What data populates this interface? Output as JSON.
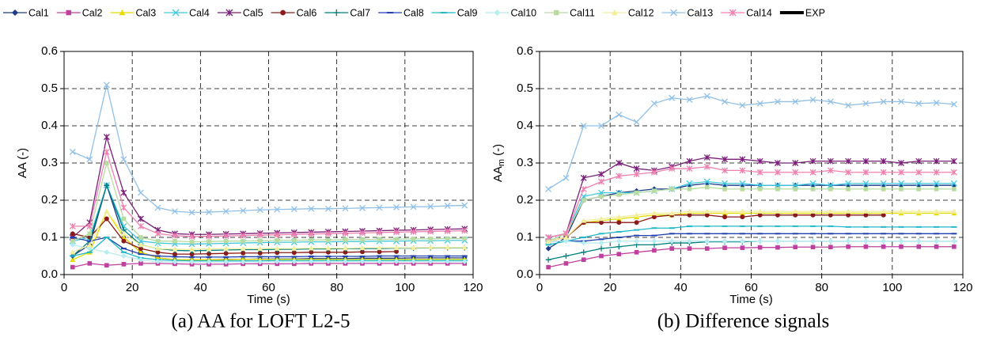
{
  "legend": [
    {
      "name": "Cal1",
      "color": "#1f3a8a",
      "marker": "diamond"
    },
    {
      "name": "Cal2",
      "color": "#c040a0",
      "marker": "square"
    },
    {
      "name": "Cal3",
      "color": "#e6dc00",
      "marker": "triangle"
    },
    {
      "name": "Cal4",
      "color": "#40c8e0",
      "marker": "x"
    },
    {
      "name": "Cal5",
      "color": "#7a1f7a",
      "marker": "star"
    },
    {
      "name": "Cal6",
      "color": "#8b1a1a",
      "marker": "circle"
    },
    {
      "name": "Cal7",
      "color": "#008080",
      "marker": "plus"
    },
    {
      "name": "Cal8",
      "color": "#2040b0",
      "marker": "dash"
    },
    {
      "name": "Cal9",
      "color": "#20b8c8",
      "marker": "dash"
    },
    {
      "name": "Cal10",
      "color": "#b8ecf0",
      "marker": "diamond"
    },
    {
      "name": "Cal11",
      "color": "#b8dca0",
      "marker": "square"
    },
    {
      "name": "Cal12",
      "color": "#f2ee9c",
      "marker": "triangle"
    },
    {
      "name": "Cal13",
      "color": "#90c0e8",
      "marker": "x"
    },
    {
      "name": "Cal14",
      "color": "#f080b0",
      "marker": "star"
    },
    {
      "name": "EXP",
      "color": "#000000",
      "marker": "none"
    }
  ],
  "chart_data": [
    {
      "type": "line",
      "caption": "(a) AA for LOFT L2-5",
      "xlabel": "Time (s)",
      "ylabel": "AA (-)",
      "xlim": [
        0,
        120
      ],
      "ylim": [
        0,
        0.6
      ],
      "xticks": [
        0,
        20,
        40,
        60,
        80,
        100,
        120
      ],
      "yticks": [
        {
          "value": 0,
          "label": "0.0"
        },
        0.1,
        0.2,
        0.3,
        0.4,
        0.5,
        0.6
      ],
      "grid": true,
      "x": [
        2.5,
        7.5,
        12.5,
        17.5,
        22.5,
        27.5,
        32.5,
        37.5,
        42.5,
        47.5,
        52.5,
        57.5,
        62.5,
        67.5,
        72.5,
        77.5,
        82.5,
        87.5,
        92.5,
        97.5,
        102.5,
        107.5,
        112.5,
        117.5
      ],
      "series": [
        {
          "values": [
            0.05,
            0.08,
            0.24,
            0.1,
            0.06,
            0.045,
            0.04,
            0.04,
            0.04,
            0.041,
            0.041,
            0.042,
            0.042,
            0.042,
            0.043,
            0.043,
            0.043,
            0.044,
            0.044,
            0.044,
            0.045,
            0.045,
            0.045,
            0.045
          ]
        },
        {
          "values": [
            0.02,
            0.03,
            0.025,
            0.028,
            0.03,
            0.03,
            0.029,
            0.028,
            0.028,
            0.028,
            0.029,
            0.029,
            0.029,
            0.029,
            0.03,
            0.03,
            0.03,
            0.03,
            0.03,
            0.03,
            0.03,
            0.03,
            0.03,
            0.03
          ]
        },
        {
          "values": [
            0.04,
            0.06,
            0.17,
            0.1,
            0.06,
            0.045,
            0.04,
            0.04,
            0.04,
            0.04,
            0.041,
            0.041,
            0.041,
            0.041,
            0.041,
            0.041,
            0.041,
            0.041,
            0.041,
            0.041,
            0.041,
            0.041,
            0.041,
            0.041
          ]
        },
        {
          "values": [
            0.09,
            0.1,
            0.24,
            0.13,
            0.09,
            0.085,
            0.083,
            0.082,
            0.083,
            0.084,
            0.085,
            0.086,
            0.087,
            0.087,
            0.088,
            0.088,
            0.089,
            0.089,
            0.09,
            0.09,
            0.091,
            0.091,
            0.092,
            0.092
          ]
        },
        {
          "values": [
            0.1,
            0.14,
            0.37,
            0.22,
            0.15,
            0.12,
            0.11,
            0.108,
            0.108,
            0.109,
            0.11,
            0.111,
            0.112,
            0.113,
            0.114,
            0.115,
            0.116,
            0.117,
            0.118,
            0.119,
            0.12,
            0.121,
            0.122,
            0.123
          ]
        },
        {
          "values": [
            0.11,
            0.1,
            0.15,
            0.09,
            0.07,
            0.06,
            0.055,
            0.055,
            0.056,
            0.057,
            0.058,
            0.058,
            0.059,
            0.059,
            0.06,
            0.06,
            0.06,
            0.061,
            0.061,
            0.062,
            null,
            null,
            null,
            null
          ]
        },
        {
          "values": [
            0.05,
            0.09,
            0.24,
            0.12,
            0.08,
            0.07,
            0.065,
            0.064,
            0.065,
            0.066,
            0.067,
            0.067,
            0.068,
            0.068,
            0.069,
            0.069,
            0.07,
            0.07,
            0.07,
            0.071,
            0.071,
            0.072,
            0.072,
            0.072
          ]
        },
        {
          "values": [
            0.1,
            0.09,
            0.1,
            0.07,
            0.055,
            0.05,
            0.048,
            0.047,
            0.047,
            0.047,
            0.048,
            0.048,
            0.048,
            0.048,
            0.049,
            0.049,
            0.049,
            0.049,
            0.05,
            0.05,
            0.05,
            0.05,
            0.05,
            0.05
          ]
        },
        {
          "values": [
            0.05,
            0.06,
            0.1,
            0.06,
            0.045,
            0.04,
            0.038,
            0.037,
            0.037,
            0.037,
            0.037,
            0.037,
            0.038,
            0.038,
            0.038,
            0.038,
            0.038,
            0.038,
            0.038,
            0.038,
            0.038,
            0.038,
            0.038,
            0.038
          ]
        },
        {
          "values": [
            0.08,
            0.07,
            0.06,
            0.05,
            0.04,
            0.035,
            0.034,
            0.034,
            0.034,
            0.034,
            0.034,
            0.034,
            0.035,
            0.035,
            0.035,
            0.035,
            0.035,
            0.035,
            0.035,
            0.035,
            0.035,
            0.035,
            0.035,
            0.035
          ]
        },
        {
          "values": [
            0.09,
            0.11,
            0.3,
            0.15,
            0.1,
            0.09,
            0.09,
            0.088,
            0.089,
            0.09,
            0.09,
            0.091,
            0.092,
            0.092,
            0.093,
            0.093,
            0.094,
            0.094,
            0.095,
            0.095,
            0.096,
            0.096,
            0.097,
            0.097
          ]
        },
        {
          "values": [
            0.06,
            0.08,
            0.17,
            0.11,
            0.08,
            0.07,
            0.068,
            0.068,
            0.069,
            0.07,
            0.07,
            0.07,
            0.07,
            0.07,
            0.071,
            0.071,
            0.071,
            0.072,
            0.072,
            0.072,
            0.072,
            0.073,
            0.073,
            0.073
          ]
        },
        {
          "values": [
            0.33,
            0.31,
            0.51,
            0.31,
            0.22,
            0.18,
            0.17,
            0.167,
            0.168,
            0.17,
            0.172,
            0.174,
            0.175,
            0.176,
            0.177,
            0.177,
            0.178,
            0.179,
            0.18,
            0.181,
            0.182,
            0.183,
            0.185,
            0.186
          ]
        },
        {
          "values": [
            0.13,
            0.13,
            0.33,
            0.18,
            0.13,
            0.11,
            0.105,
            0.102,
            0.103,
            0.104,
            0.105,
            0.106,
            0.107,
            0.108,
            0.109,
            0.11,
            0.111,
            0.112,
            0.113,
            0.114,
            0.115,
            0.116,
            0.117,
            0.118
          ]
        }
      ]
    },
    {
      "type": "line",
      "caption": "(b) Difference signals",
      "xlabel": "Time (s)",
      "ylabel_main": "AA",
      "ylabel_sub": "m",
      "ylabel_rest": "(-)",
      "xlim": [
        0,
        120
      ],
      "ylim": [
        0,
        0.6
      ],
      "xticks": [
        0,
        20,
        40,
        60,
        80,
        100,
        120
      ],
      "yticks": [
        {
          "value": 0,
          "label": "0.0"
        },
        0.1,
        0.2,
        0.3,
        0.4,
        0.5,
        0.6
      ],
      "grid": true,
      "x": [
        2.5,
        7.5,
        12.5,
        17.5,
        22.5,
        27.5,
        32.5,
        37.5,
        42.5,
        47.5,
        52.5,
        57.5,
        62.5,
        67.5,
        72.5,
        77.5,
        82.5,
        87.5,
        92.5,
        97.5,
        102.5,
        107.5,
        112.5,
        117.5
      ],
      "series": [
        {
          "values": [
            0.07,
            0.1,
            0.2,
            0.21,
            0.22,
            0.225,
            0.23,
            0.23,
            0.24,
            0.245,
            0.24,
            0.24,
            0.24,
            0.24,
            0.24,
            0.24,
            0.24,
            0.24,
            0.24,
            0.24,
            0.24,
            0.24,
            0.24,
            0.24
          ]
        },
        {
          "values": [
            0.02,
            0.03,
            0.04,
            0.05,
            0.055,
            0.06,
            0.065,
            0.07,
            0.07,
            0.07,
            0.072,
            0.072,
            0.073,
            0.073,
            0.074,
            0.074,
            0.074,
            0.075,
            0.075,
            0.075,
            0.075,
            0.075,
            0.075,
            0.075
          ]
        },
        {
          "values": [
            0.09,
            0.1,
            0.14,
            0.145,
            0.15,
            0.155,
            0.16,
            0.16,
            0.165,
            0.165,
            0.165,
            0.165,
            0.165,
            0.165,
            0.165,
            0.165,
            0.165,
            0.165,
            0.165,
            0.165,
            0.165,
            0.165,
            0.165,
            0.165
          ]
        },
        {
          "values": [
            0.09,
            0.11,
            0.21,
            0.22,
            0.22,
            0.22,
            0.225,
            0.23,
            0.245,
            0.25,
            0.245,
            0.245,
            0.24,
            0.24,
            0.24,
            0.245,
            0.24,
            0.245,
            0.245,
            0.245,
            0.245,
            0.245,
            0.245,
            0.245
          ]
        },
        {
          "values": [
            0.1,
            0.11,
            0.26,
            0.27,
            0.3,
            0.285,
            0.28,
            0.29,
            0.305,
            0.315,
            0.31,
            0.31,
            0.305,
            0.3,
            0.3,
            0.305,
            0.305,
            0.305,
            0.305,
            0.305,
            0.3,
            0.305,
            0.305,
            0.305
          ]
        },
        {
          "values": [
            0.09,
            0.1,
            0.14,
            0.14,
            0.14,
            0.14,
            0.155,
            0.16,
            0.16,
            0.16,
            0.155,
            0.155,
            0.16,
            0.16,
            0.16,
            0.16,
            0.16,
            0.16,
            0.16,
            0.16,
            null,
            null,
            null,
            null
          ]
        },
        {
          "values": [
            0.04,
            0.05,
            0.06,
            0.07,
            0.075,
            0.08,
            0.08,
            0.085,
            0.085,
            0.088,
            0.088,
            0.088,
            0.09,
            0.09,
            0.09,
            0.09,
            0.09,
            0.09,
            0.09,
            0.09,
            0.09,
            0.09,
            0.09,
            0.09
          ]
        },
        {
          "values": [
            0.09,
            0.09,
            0.09,
            0.095,
            0.1,
            0.105,
            0.105,
            0.11,
            0.11,
            0.11,
            0.11,
            0.11,
            0.11,
            0.11,
            0.11,
            0.11,
            0.11,
            0.11,
            0.11,
            0.11,
            0.11,
            0.11,
            0.11,
            0.11
          ]
        },
        {
          "values": [
            0.08,
            0.09,
            0.1,
            0.11,
            0.115,
            0.12,
            0.125,
            0.125,
            0.13,
            0.13,
            0.13,
            0.13,
            0.13,
            0.13,
            0.13,
            0.13,
            0.13,
            0.128,
            0.128,
            0.128,
            0.128,
            0.128,
            0.128,
            0.128
          ]
        },
        {
          "values": [
            0.09,
            0.09,
            0.085,
            0.085,
            0.09,
            0.09,
            0.09,
            0.09,
            0.09,
            0.09,
            0.09,
            0.09,
            0.09,
            0.09,
            0.09,
            0.09,
            0.09,
            0.09,
            0.09,
            0.09,
            0.09,
            0.09,
            0.09,
            0.09
          ]
        },
        {
          "values": [
            0.09,
            0.11,
            0.2,
            0.21,
            0.215,
            0.22,
            0.225,
            0.23,
            0.23,
            0.235,
            0.23,
            0.23,
            0.23,
            0.23,
            0.23,
            0.23,
            0.23,
            0.23,
            0.23,
            0.23,
            0.23,
            0.23,
            0.23,
            0.23
          ]
        },
        {
          "values": [
            0.09,
            0.1,
            0.145,
            0.15,
            0.155,
            0.16,
            0.165,
            0.165,
            0.17,
            0.17,
            0.17,
            0.17,
            0.17,
            0.17,
            0.17,
            0.17,
            0.17,
            0.17,
            0.17,
            0.17,
            0.17,
            0.17,
            0.17,
            0.17
          ]
        },
        {
          "values": [
            0.23,
            0.26,
            0.4,
            0.4,
            0.43,
            0.41,
            0.46,
            0.475,
            0.47,
            0.48,
            0.465,
            0.455,
            0.46,
            0.465,
            0.465,
            0.47,
            0.465,
            0.455,
            0.46,
            0.465,
            0.465,
            0.46,
            0.462,
            0.458
          ]
        },
        {
          "values": [
            0.1,
            0.11,
            0.23,
            0.25,
            0.265,
            0.27,
            0.275,
            0.285,
            0.285,
            0.29,
            0.28,
            0.28,
            0.275,
            0.275,
            0.275,
            0.275,
            0.28,
            0.275,
            0.275,
            0.275,
            0.275,
            0.275,
            0.275,
            0.275
          ]
        }
      ]
    }
  ]
}
